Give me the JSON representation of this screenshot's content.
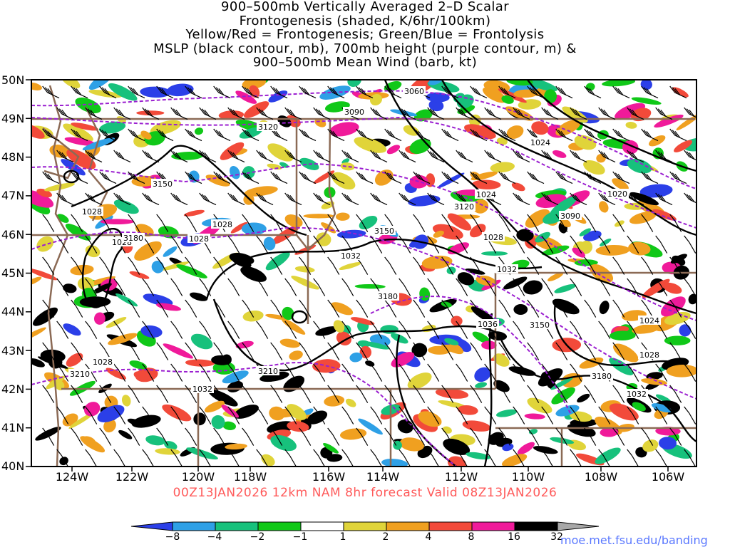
{
  "title_lines": [
    "900–500mb Vertically Averaged 2–D Scalar",
    "Frontogenesis (shaded, K/6hr/100km)",
    "Yellow/Red = Frontogenesis;  Green/Blue = Frontolysis",
    "MSLP (black contour, mb), 700mb height (purple contour, m) &",
    "900–500mb Mean Wind (barb, kt)"
  ],
  "lat_labels": [
    "50N",
    "49N",
    "48N",
    "47N",
    "46N",
    "45N",
    "44N",
    "43N",
    "42N",
    "41N",
    "40N"
  ],
  "lon_labels": [
    "124W",
    "122W",
    "120W",
    "118W",
    "116W",
    "114W",
    "112W",
    "110W",
    "108W",
    "106W"
  ],
  "valid_text": "00Z13JAN2026 12km NAM 8hr forecast Valid 08Z13JAN2026",
  "colorbar": {
    "labels": [
      "−8",
      "−4",
      "−2",
      "−1",
      "1",
      "2",
      "4",
      "8",
      "16",
      "32"
    ],
    "colors": [
      "#2b3fe8",
      "#2ea0e6",
      "#17c17c",
      "#10c818",
      "#ffffff",
      "#e0d43a",
      "#f0a020",
      "#f24a3a",
      "#f01a9a",
      "#000000",
      "#a8a8a8"
    ]
  },
  "credit": "moe.met.fsu.edu/banding",
  "map": {
    "mslp_contour_labels": [
      "1028",
      "1028",
      "1028",
      "1028",
      "1028",
      "1032",
      "1032",
      "1036",
      "1032",
      "1032",
      "1028",
      "1024",
      "1024",
      "1020",
      "1028",
      "1024"
    ],
    "height_contour_labels": [
      "3060",
      "3090",
      "3120",
      "3150",
      "3150",
      "3120",
      "3090",
      "3180",
      "3180",
      "3150",
      "3210",
      "3210",
      "3180"
    ],
    "colors": {
      "border": "#8b6a55",
      "mslp": "#000000",
      "height": "#9b1fd0"
    }
  }
}
